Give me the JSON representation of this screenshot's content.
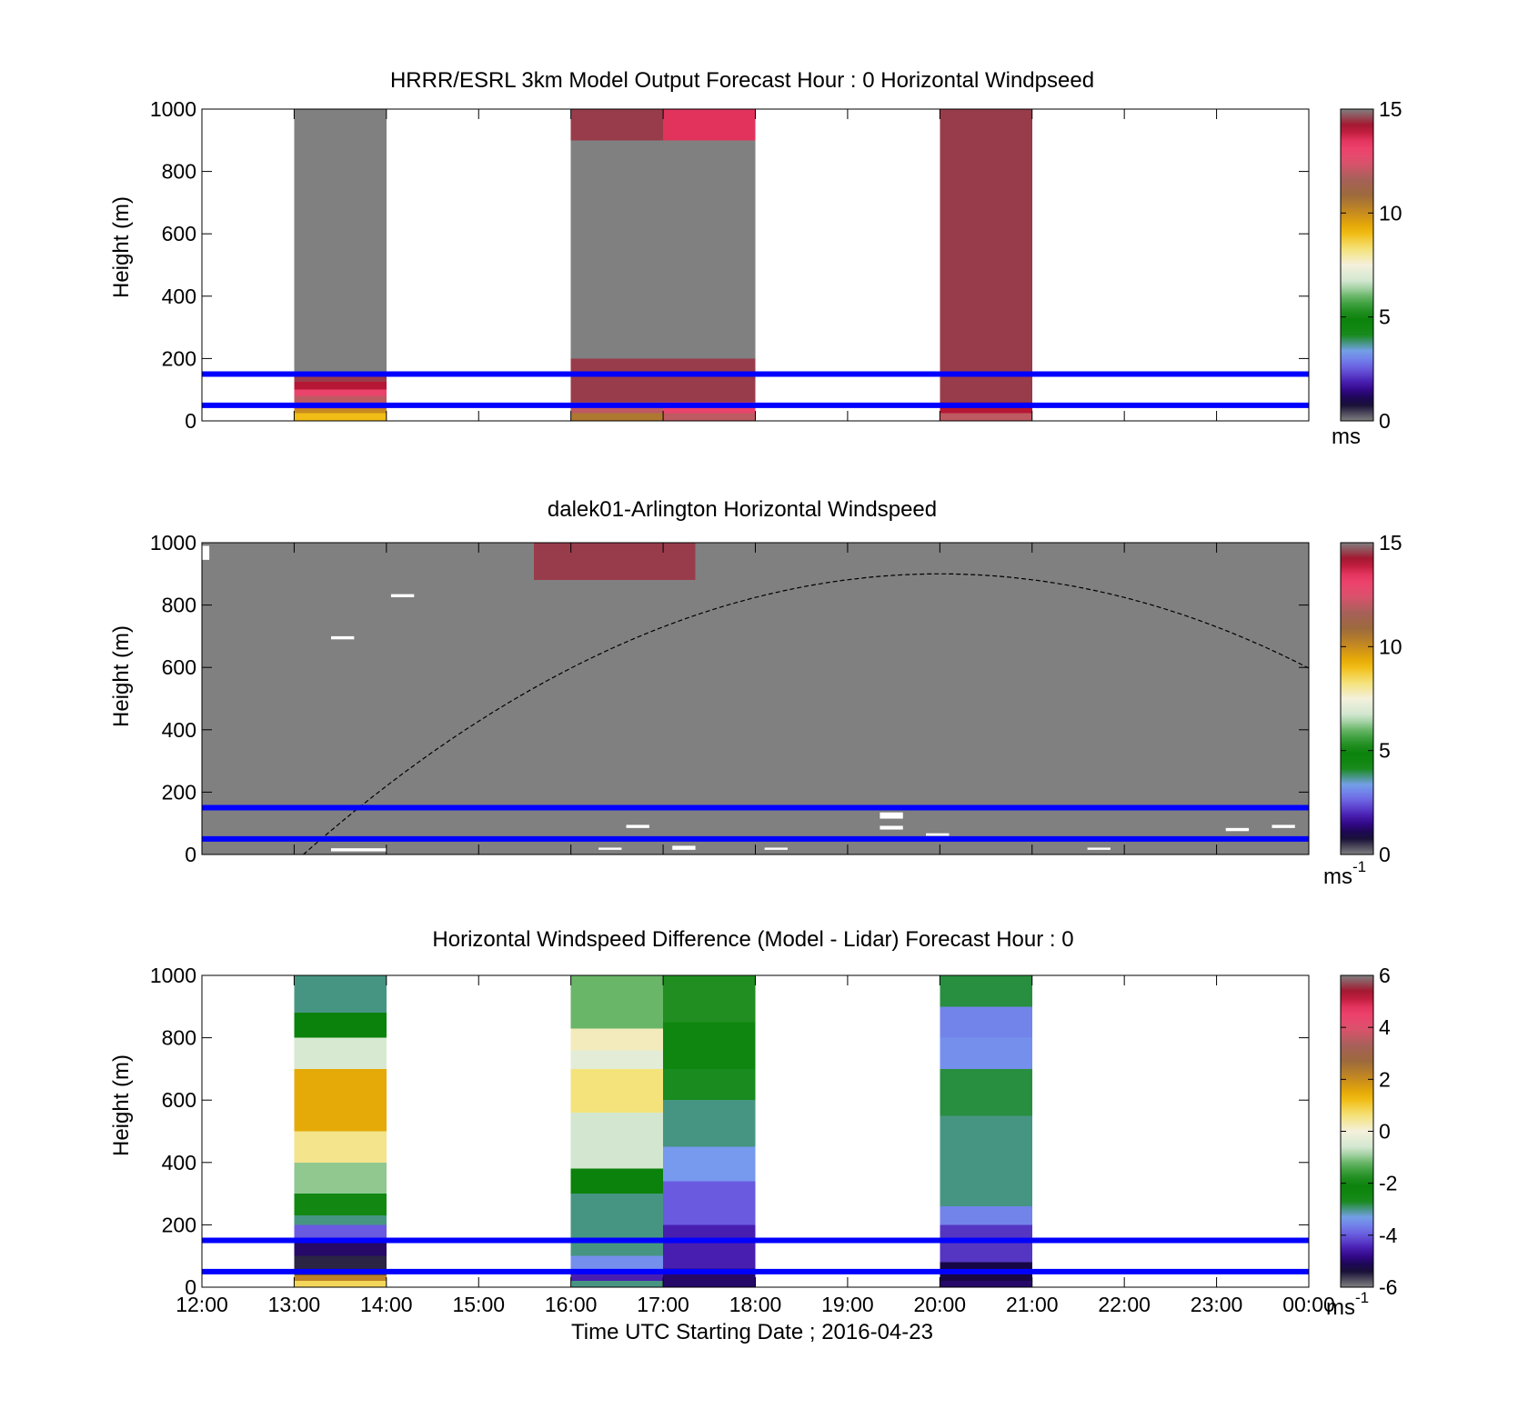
{
  "figure": {
    "panels": [
      {
        "title": "HRRR/ESRL 3km Model Output   Forecast Hour : 0 Horizontal Windpseed",
        "ylabel": "Height (m)",
        "colorbar_ticks": [
          "15",
          "10",
          "5",
          "0"
        ],
        "colorbar_unit": "ms",
        "colorbar_exp": ""
      },
      {
        "title": "dalek01-Arlington  Horizontal Windspeed",
        "ylabel": "Height (m)",
        "colorbar_ticks": [
          "15",
          "10",
          "5",
          "0"
        ],
        "colorbar_unit": "ms",
        "colorbar_exp": "-1"
      },
      {
        "title": "Horizontal Windspeed Difference (Model - Lidar) Forecast Hour : 0",
        "ylabel": "Height (m)",
        "colorbar_ticks": [
          "6",
          "4",
          "2",
          "0",
          "-2",
          "-4",
          "-6"
        ],
        "colorbar_unit": "ms",
        "colorbar_exp": "-1"
      }
    ],
    "y_ticks": [
      "1000",
      "800",
      "600",
      "400",
      "200",
      "0"
    ],
    "x_ticks": [
      "12:00",
      "13:00",
      "14:00",
      "15:00",
      "16:00",
      "17:00",
      "18:00",
      "19:00",
      "20:00",
      "21:00",
      "22:00",
      "23:00",
      "00:00"
    ],
    "xlabel": "Time UTC  Starting Date ; 2016-04-23"
  },
  "chart_data": [
    {
      "type": "heatmap",
      "x_range_hours_utc": [
        12,
        24
      ],
      "ylim": [
        0,
        1000
      ],
      "clim": [
        0,
        15
      ],
      "columns": [
        {
          "start_hour": 13,
          "end_hour": 14,
          "cells": [
            [
              0,
              25,
              9
            ],
            [
              25,
              40,
              10
            ],
            [
              40,
              80,
              12
            ],
            [
              80,
              100,
              13
            ],
            [
              100,
              125,
              14
            ],
            [
              125,
              155,
              14.5
            ],
            [
              155,
              1000,
              0
            ]
          ]
        },
        {
          "start_hour": 16,
          "end_hour": 17,
          "cells": [
            [
              0,
              25,
              10.5
            ],
            [
              25,
              60,
              12
            ],
            [
              60,
              200,
              14.5
            ],
            [
              200,
              400,
              15
            ],
            [
              400,
              900,
              0
            ],
            [
              900,
              1000,
              14.5
            ]
          ]
        },
        {
          "start_hour": 17,
          "end_hour": 18,
          "cells": [
            [
              0,
              25,
              12
            ],
            [
              25,
              60,
              13
            ],
            [
              60,
              200,
              14.5
            ],
            [
              200,
              700,
              15
            ],
            [
              700,
              900,
              15
            ],
            [
              900,
              1000,
              13.5
            ]
          ]
        },
        {
          "start_hour": 20,
          "end_hour": 21,
          "cells": [
            [
              0,
              25,
              12
            ],
            [
              25,
              60,
              14
            ],
            [
              60,
              1000,
              14.5
            ]
          ]
        }
      ],
      "reference_lines_m": [
        150,
        50
      ]
    },
    {
      "type": "heatmap",
      "x_range_hours_utc": [
        12,
        24
      ],
      "ylim": [
        0,
        1000
      ],
      "clim": [
        0,
        15
      ],
      "background_value": 0,
      "patches": [
        {
          "x0": 12,
          "x1": 24,
          "y0": 0,
          "y1": 40,
          "v": 15
        },
        {
          "x0": 15.35,
          "x1": 15.85,
          "y0": 970,
          "y1": 1000,
          "v": 15
        },
        {
          "x0": 15.6,
          "x1": 17.35,
          "y0": 880,
          "y1": 1000,
          "v": 14.5
        },
        {
          "x0": 16.1,
          "x1": 16.35,
          "y0": 760,
          "y1": 880,
          "v": 15
        },
        {
          "x0": 15.6,
          "x1": 16.1,
          "y0": 715,
          "y1": 735,
          "v": 15
        },
        {
          "x0": 16.55,
          "x1": 16.85,
          "y0": 790,
          "y1": 810,
          "v": 15
        },
        {
          "x0": 17.35,
          "x1": 17.6,
          "y0": 960,
          "y1": 1000,
          "v": 15
        },
        {
          "x0": 17.6,
          "x1": 17.85,
          "y0": 760,
          "y1": 1000,
          "v": 15
        },
        {
          "x0": 17.85,
          "x1": 19.0,
          "y0": 880,
          "y1": 1000,
          "v": 15
        },
        {
          "x0": 18.1,
          "x1": 18.35,
          "y0": 840,
          "y1": 880,
          "v": 15
        },
        {
          "x0": 19.1,
          "x1": 19.35,
          "y0": 460,
          "y1": 1000,
          "v": 15
        },
        {
          "x0": 19.35,
          "x1": 19.6,
          "y0": 970,
          "y1": 1000,
          "v": 15
        },
        {
          "x0": 19.85,
          "x1": 20.1,
          "y0": 920,
          "y1": 1000,
          "v": 15
        },
        {
          "x0": 20.1,
          "x1": 20.35,
          "y0": 985,
          "y1": 1000,
          "v": 15
        },
        {
          "x0": 20.85,
          "x1": 21.1,
          "y0": 560,
          "y1": 630,
          "v": 15
        },
        {
          "x0": 21.85,
          "x1": 22.1,
          "y0": 430,
          "y1": 445,
          "v": 15
        },
        {
          "x0": 21.85,
          "x1": 22.1,
          "y0": 780,
          "y1": 1000,
          "v": 15
        },
        {
          "x0": 22.1,
          "x1": 22.35,
          "y0": 915,
          "y1": 930,
          "v": 15
        },
        {
          "x0": 22.35,
          "x1": 22.6,
          "y0": 800,
          "y1": 880,
          "v": 15
        },
        {
          "x0": 22.35,
          "x1": 22.6,
          "y0": 550,
          "y1": 700,
          "v": 15
        },
        {
          "x0": 22.6,
          "x1": 22.85,
          "y0": 150,
          "y1": 700,
          "v": 15
        },
        {
          "x0": 22.85,
          "x1": 23.1,
          "y0": 530,
          "y1": 760,
          "v": 15
        },
        {
          "x0": 22.85,
          "x1": 23.1,
          "y0": 430,
          "y1": 480,
          "v": 15
        },
        {
          "x0": 22.6,
          "x1": 23.35,
          "y0": 0,
          "y1": 100,
          "v": 15
        },
        {
          "x0": 23.35,
          "x1": 23.6,
          "y0": 0,
          "y1": 120,
          "v": 15
        },
        {
          "x0": 23.35,
          "x1": 23.6,
          "y0": 470,
          "y1": 850,
          "v": 15
        },
        {
          "x0": 23.6,
          "x1": 23.85,
          "y0": 180,
          "y1": 1000,
          "v": 15
        },
        {
          "x0": 23.6,
          "x1": 23.85,
          "y0": 0,
          "y1": 80,
          "v": 15
        }
      ],
      "missing_segments": [
        {
          "x0": 12.0,
          "x1": 12.08,
          "y0": 945,
          "y1": 990
        },
        {
          "x0": 13.4,
          "x1": 13.65,
          "y0": 690,
          "y1": 700
        },
        {
          "x0": 14.05,
          "x1": 14.3,
          "y0": 825,
          "y1": 835
        },
        {
          "x0": 16.6,
          "x1": 16.85,
          "y0": 85,
          "y1": 95
        },
        {
          "x0": 19.35,
          "x1": 19.6,
          "y0": 115,
          "y1": 135
        },
        {
          "x0": 19.35,
          "x1": 19.6,
          "y0": 80,
          "y1": 92
        },
        {
          "x0": 19.85,
          "x1": 20.1,
          "y0": 60,
          "y1": 68
        },
        {
          "x0": 23.1,
          "x1": 23.35,
          "y0": 75,
          "y1": 85
        },
        {
          "x0": 23.6,
          "x1": 23.85,
          "y0": 85,
          "y1": 95
        },
        {
          "x0": 13.4,
          "x1": 14.0,
          "y0": 10,
          "y1": 20
        },
        {
          "x0": 16.3,
          "x1": 16.55,
          "y0": 15,
          "y1": 22
        },
        {
          "x0": 17.1,
          "x1": 17.35,
          "y0": 15,
          "y1": 28
        },
        {
          "x0": 18.1,
          "x1": 18.35,
          "y0": 15,
          "y1": 22
        },
        {
          "x0": 21.6,
          "x1": 21.85,
          "y0": 15,
          "y1": 22
        }
      ],
      "curve": {
        "x0": 13.1,
        "x_peak": 20.0,
        "y_peak": 900,
        "x_end": 24
      }
    },
    {
      "type": "heatmap",
      "x_range_hours_utc": [
        12,
        24
      ],
      "ylim": [
        0,
        1000
      ],
      "clim": [
        -6,
        6
      ],
      "columns": [
        {
          "start_hour": 13,
          "end_hour": 14,
          "cells": [
            [
              0,
              20,
              0.8
            ],
            [
              20,
              40,
              2.2
            ],
            [
              40,
              100,
              -5.5
            ],
            [
              100,
              150,
              -5
            ],
            [
              150,
              200,
              -4
            ],
            [
              200,
              230,
              -3
            ],
            [
              230,
              300,
              -2.5
            ],
            [
              300,
              400,
              -1
            ],
            [
              400,
              500,
              0.5
            ],
            [
              500,
              700,
              1.5
            ],
            [
              700,
              800,
              -0.5
            ],
            [
              800,
              880,
              -2
            ],
            [
              880,
              1000,
              -3
            ]
          ]
        },
        {
          "start_hour": 16,
          "end_hour": 17,
          "cells": [
            [
              0,
              20,
              -3
            ],
            [
              20,
              50,
              -4.5
            ],
            [
              50,
              100,
              -3.5
            ],
            [
              100,
              300,
              -3
            ],
            [
              300,
              380,
              -2
            ],
            [
              380,
              560,
              -0.6
            ],
            [
              560,
              700,
              0.6
            ],
            [
              700,
              760,
              -0.3
            ],
            [
              760,
              830,
              0.2
            ],
            [
              830,
              1000,
              -1.2
            ]
          ]
        },
        {
          "start_hour": 17,
          "end_hour": 18,
          "cells": [
            [
              0,
              60,
              -5
            ],
            [
              60,
              200,
              -4.5
            ],
            [
              200,
              340,
              -4
            ],
            [
              340,
              450,
              -3.4
            ],
            [
              450,
              600,
              -3
            ],
            [
              600,
              700,
              -2.7
            ],
            [
              700,
              850,
              -2.3
            ],
            [
              850,
              1000,
              -1.8
            ]
          ]
        },
        {
          "start_hour": 20,
          "end_hour": 21,
          "cells": [
            [
              0,
              20,
              -5
            ],
            [
              20,
              80,
              -5.2
            ],
            [
              80,
              200,
              -4.3
            ],
            [
              200,
              260,
              -3.6
            ],
            [
              260,
              550,
              -3
            ],
            [
              550,
              700,
              -2.8
            ],
            [
              700,
              800,
              -3.5
            ],
            [
              800,
              900,
              -3.6
            ],
            [
              900,
              1000,
              -2.8
            ]
          ]
        }
      ],
      "reference_lines_m": [
        150,
        50
      ]
    }
  ],
  "colors": {
    "reference_line": "#0000ff",
    "missing": "#ffffff",
    "background_gray": "#808080",
    "speed_colormap": [
      "#808080",
      "#0e0530",
      "#3c0aa0",
      "#6a5ae0",
      "#78a0f0",
      "#148a14",
      "#0b820b",
      "#50aa50",
      "#cfe6cf",
      "#f4f0dc",
      "#f4e070",
      "#f0b400",
      "#c98c1e",
      "#9c6a3c",
      "#a8605a",
      "#e0506e",
      "#f03c6a",
      "#a80e28",
      "#808080"
    ],
    "diff_colormap": [
      "#808080",
      "#0e0530",
      "#3c0aa0",
      "#6a5ae0",
      "#78a0f0",
      "#148a14",
      "#0b820b",
      "#50aa50",
      "#cfe6cf",
      "#f4f0dc",
      "#f4e070",
      "#f0b400",
      "#c98c1e",
      "#9c6a3c",
      "#a8605a",
      "#e0506e",
      "#f03c6a",
      "#a80e28",
      "#808080"
    ]
  }
}
